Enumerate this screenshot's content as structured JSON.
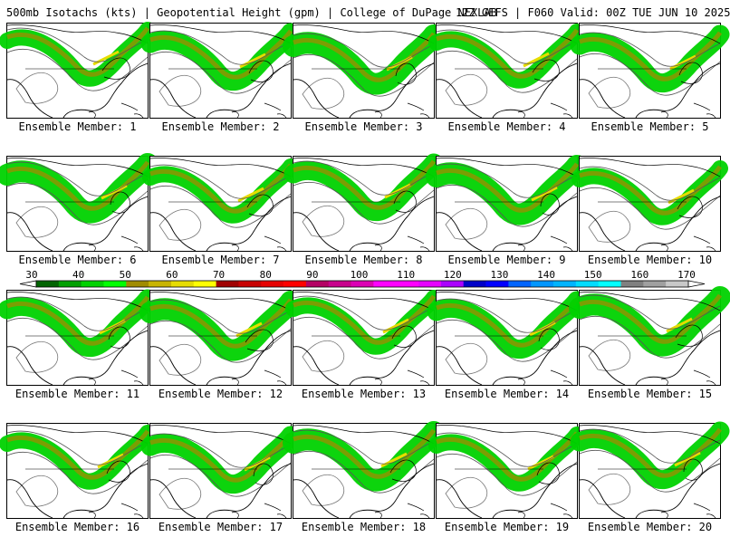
{
  "header": {
    "left": "500mb Isotachs (kts) | Geopotential Height (gpm) | College of DuPage NEXLAB",
    "right": "12Z GEFS | F060 Valid: 00Z TUE JUN 10 2025"
  },
  "panels": [
    {
      "label": "Ensemble Member: 1"
    },
    {
      "label": "Ensemble Member: 2"
    },
    {
      "label": "Ensemble Member: 3"
    },
    {
      "label": "Ensemble Member: 4"
    },
    {
      "label": "Ensemble Member: 5"
    },
    {
      "label": "Ensemble Member: 6"
    },
    {
      "label": "Ensemble Member: 7"
    },
    {
      "label": "Ensemble Member: 8"
    },
    {
      "label": "Ensemble Member: 9"
    },
    {
      "label": "Ensemble Member: 10"
    },
    {
      "label": "Ensemble Member: 11"
    },
    {
      "label": "Ensemble Member: 12"
    },
    {
      "label": "Ensemble Member: 13"
    },
    {
      "label": "Ensemble Member: 14"
    },
    {
      "label": "Ensemble Member: 15"
    },
    {
      "label": "Ensemble Member: 16"
    },
    {
      "label": "Ensemble Member: 17"
    },
    {
      "label": "Ensemble Member: 18"
    },
    {
      "label": "Ensemble Member: 19"
    },
    {
      "label": "Ensemble Member: 20"
    }
  ],
  "colorbar": {
    "ticks": [
      "30",
      "40",
      "50",
      "60",
      "70",
      "80",
      "90",
      "100",
      "110",
      "120",
      "130",
      "140",
      "150",
      "160",
      "170"
    ],
    "colors": [
      "#006400",
      "#00a000",
      "#00d200",
      "#00ff00",
      "#a08c00",
      "#c8b400",
      "#e6dc00",
      "#ffff00",
      "#a00000",
      "#c80000",
      "#e60000",
      "#ff0000",
      "#b40064",
      "#c8008c",
      "#dc00b4",
      "#ff00ff",
      "#ff00ff",
      "#e600ff",
      "#aa00ff",
      "#0000c8",
      "#0000ff",
      "#0064ff",
      "#0096ff",
      "#00b4ff",
      "#00dcff",
      "#00ffff",
      "#808080",
      "#a0a0a0",
      "#c8c8c8"
    ]
  }
}
